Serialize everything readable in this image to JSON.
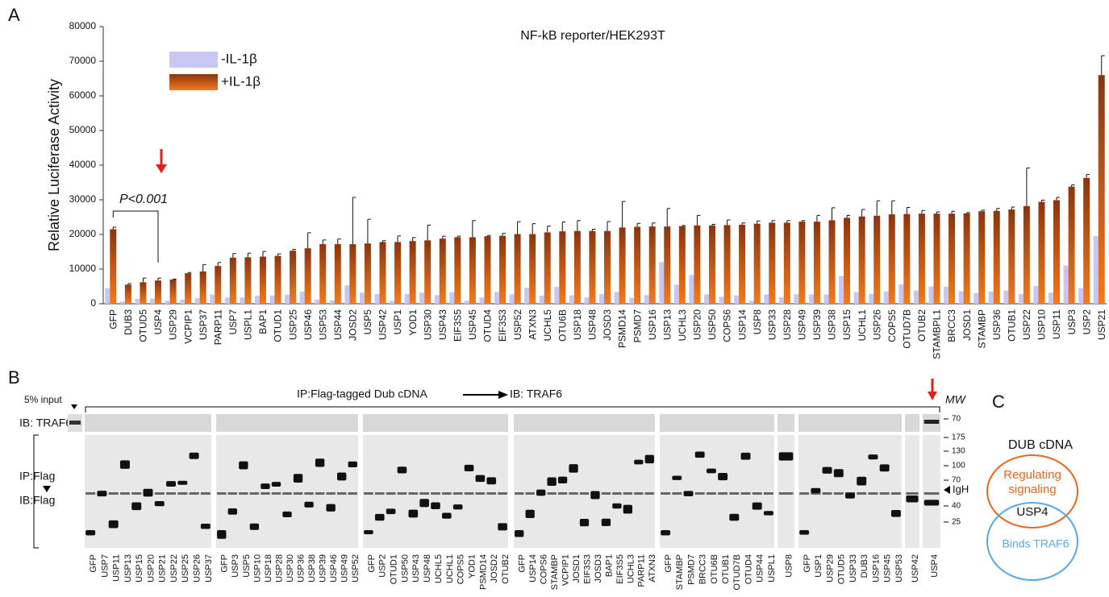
{
  "chart_data": {
    "type": "bar",
    "title": "NF-kB reporter/HEK293T",
    "y_label": "Relative Luciferase Activity",
    "categories": [
      "GFP",
      "DUB3",
      "OTUD5",
      "USP4",
      "USP29",
      "VCPIP1",
      "USP37",
      "PARP11",
      "USP7",
      "USPL1",
      "BAP1",
      "OTUD1",
      "USP25",
      "USP46",
      "USP53",
      "USP44",
      "JOSD2",
      "USP5",
      "USP42",
      "USP1",
      "YOD1",
      "USP30",
      "USP43",
      "EIF3S5",
      "USP45",
      "OTUD4",
      "EIF3S3",
      "USP52",
      "ATXN3",
      "UCHL5",
      "OTU6B",
      "USP18",
      "USP48",
      "JOSD3",
      "PSMD14",
      "PSMD7",
      "USP16",
      "USP13",
      "UCHL3",
      "USP20",
      "USP50",
      "COPS6",
      "USP14",
      "USP8",
      "USP33",
      "USP28",
      "USP49",
      "USP39",
      "USP38",
      "USP15",
      "UCHL1",
      "USP26",
      "COPS5",
      "OTUD7B",
      "OTUB2",
      "STAMBPL1",
      "BRCC3",
      "JOSD1",
      "STAMBP",
      "USP36",
      "OTUB1",
      "USP22",
      "USP10",
      "USP11",
      "USP3",
      "USP2",
      "USP21"
    ],
    "series": [
      {
        "name": "-IL-1β",
        "color": "#c8c6f2",
        "values": [
          4500,
          700,
          1400,
          1500,
          900,
          1200,
          1600,
          2700,
          1800,
          1800,
          2300,
          2400,
          2600,
          3500,
          1200,
          1000,
          5300,
          3200,
          2800,
          900,
          2800,
          3200,
          2500,
          3300,
          900,
          1800,
          3400,
          2700,
          4600,
          2300,
          4900,
          2400,
          1800,
          2800,
          3400,
          1700,
          2500,
          12000,
          5500,
          8300,
          2700,
          2000,
          2400,
          900,
          2700,
          1900,
          2700,
          2700,
          2700,
          8000,
          3300,
          2800,
          3600,
          5600,
          3800,
          5000,
          4900,
          3600,
          3100,
          3500,
          3800,
          2800,
          5100,
          3200,
          11000,
          4500,
          19500
        ]
      },
      {
        "name": "+IL-1β",
        "color": "#f47a1c",
        "values": [
          21500,
          5500,
          6200,
          6700,
          7000,
          8800,
          9300,
          10900,
          13300,
          13400,
          13600,
          13800,
          15300,
          16000,
          17200,
          17200,
          17200,
          17400,
          17800,
          17800,
          18100,
          18300,
          18800,
          19200,
          19200,
          19500,
          19600,
          20100,
          20100,
          20600,
          20900,
          21000,
          21000,
          21000,
          22000,
          22200,
          22300,
          22300,
          22400,
          22600,
          22600,
          22700,
          22800,
          23100,
          23400,
          23400,
          23700,
          23700,
          24100,
          24800,
          25200,
          25400,
          25800,
          25900,
          26000,
          26000,
          26000,
          26100,
          26700,
          26800,
          27200,
          28200,
          29400,
          29900,
          33800,
          36300,
          66000
        ],
        "errors": [
          600,
          300,
          1200,
          700,
          100,
          200,
          2000,
          1000,
          1200,
          1200,
          1500,
          600,
          400,
          4500,
          1200,
          1500,
          13500,
          7000,
          400,
          1800,
          1000,
          4400,
          700,
          300,
          4800,
          200,
          700,
          3600,
          3000,
          1800,
          2700,
          3000,
          500,
          2700,
          7500,
          1000,
          1000,
          5200,
          200,
          2900,
          300,
          1500,
          500,
          800,
          600,
          600,
          300,
          1800,
          3600,
          700,
          2000,
          4300,
          3900,
          1900,
          900,
          500,
          700,
          200,
          300,
          700,
          700,
          11000,
          500,
          800,
          500,
          1000,
          5600
        ]
      }
    ],
    "ylim": [
      0,
      80000
    ],
    "yticks": [
      0,
      10000,
      20000,
      30000,
      40000,
      50000,
      60000,
      70000,
      80000
    ],
    "annotation": "P<0.001",
    "legend": "upper left"
  },
  "panel_labels": [
    "A",
    "B",
    "C"
  ],
  "panel_b": {
    "input_label": "5% input",
    "ip_label": "IP:Flag-tagged Dub cDNA",
    "ib_label": "IB: TRAF6",
    "row_label_traf6": "IB: TRAF6",
    "row_label_ip": "IP:Flag",
    "row_label_ib": "IB:Flag",
    "mw_title": "MW",
    "igh_label": "IgH",
    "mw_markers": [
      "70",
      "175",
      "130",
      "100",
      "70",
      "40",
      "25"
    ],
    "lane_groups": [
      [
        "GFP",
        "USP7",
        "USP11",
        "USP13",
        "USP15",
        "USP20",
        "USP21",
        "USP22",
        "USP25",
        "USP26",
        "USP37"
      ],
      [
        "GFP",
        "USP3",
        "USP5",
        "USP10",
        "USP18",
        "USP28",
        "USP30",
        "USP36",
        "USP38",
        "USP39",
        "USP46",
        "USP49",
        "USP52"
      ],
      [
        "GFP",
        "USP2",
        "OTUD1",
        "USP50",
        "USP43",
        "USP48",
        "UCHL5",
        "UCHL1",
        "COPS5",
        "YOD1",
        "PSMD14",
        "JOSD2",
        "OTUB2"
      ],
      [
        "GFP",
        "USP14",
        "COPS6",
        "STAMBP",
        "VCPIP1",
        "JOSD1",
        "EIF3S3",
        "JOSD3",
        "BAP1",
        "EIF3S5",
        "UCHL3",
        "PARP11",
        "ATXN3"
      ],
      [
        "GFP",
        "STAMBP",
        "PSMD7",
        "BRCC3",
        "OTU6B",
        "OTUB1",
        "OTUD7B",
        "OTUD4",
        "USP44",
        "USPL1"
      ],
      [
        "USP8"
      ],
      [
        "GFP",
        "USP1",
        "USP29",
        "OTUD5",
        "USP33",
        "DUB3",
        "USP16",
        "USP45",
        "USP53"
      ],
      [
        "USP42"
      ],
      [
        "USP4"
      ]
    ]
  },
  "panel_c": {
    "title": "DUB cDNA",
    "upper_lines": [
      "Regulating",
      "signaling"
    ],
    "overlap": "USP4",
    "lower": "Binds TRAF6"
  }
}
